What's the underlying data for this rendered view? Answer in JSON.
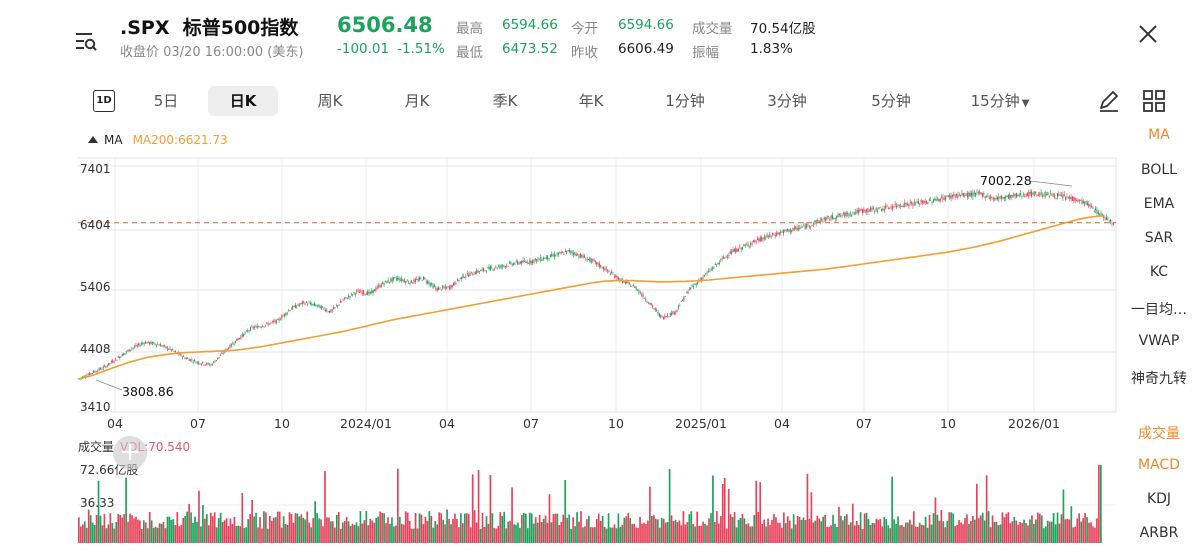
{
  "header": {
    "symbol": ".SPX",
    "name": "标普500指数",
    "status": "收盘价 03/20 16:00:00 (美东)",
    "price": "6506.48",
    "change": "-100.01",
    "change_pct": "-1.51%",
    "stats": [
      {
        "label": "最高",
        "value": "6594.66"
      },
      {
        "label": "今开",
        "value": "6594.66"
      },
      {
        "label": "成交量",
        "value": "70.54亿股"
      },
      {
        "label": "最低",
        "value": "6473.52"
      },
      {
        "label": "昨收",
        "value": "6606.49"
      },
      {
        "label": "振幅",
        "value": "1.83%"
      }
    ]
  },
  "periods": {
    "badge": "1D",
    "items": [
      "5日",
      "日K",
      "周K",
      "月K",
      "季K",
      "年K",
      "1分钟",
      "3分钟",
      "5分钟",
      "15分钟"
    ],
    "active": "日K"
  },
  "chart_header": {
    "ma_label": "MA",
    "ma200_label": "MA200:6621.73"
  },
  "indicators_main": [
    "MA",
    "BOLL",
    "EMA",
    "SAR",
    "KC",
    "一目均…",
    "VWAP",
    "神奇九转"
  ],
  "indicators_sub": [
    "成交量",
    "MACD",
    "KDJ",
    "ARBR"
  ],
  "volume": {
    "title": "成交量",
    "vol_label": "VOL:70.540",
    "y_top": "72.66亿股",
    "y_mid": "36.33"
  },
  "colors": {
    "up": "#e8405a",
    "down": "#1aa35a",
    "ma200": "#f0a030",
    "price_line": "#e07040"
  },
  "chart_data": {
    "type": "candlestick",
    "title": ".SPX 标普500指数",
    "y_ticks": [
      "7401",
      "6404",
      "5406",
      "4408",
      "3410"
    ],
    "ylim": [
      3410,
      7401
    ],
    "x_ticks": [
      "04",
      "07",
      "10",
      "2024/01",
      "04",
      "07",
      "10",
      "2025/01",
      "04",
      "07",
      "10",
      "2026/01"
    ],
    "annotations": {
      "high": "7002.28",
      "low": "3808.86"
    },
    "current_price_line": 6506.48,
    "ma200_last": 6621.73,
    "series": [
      {
        "name": "close",
        "values": [
          3950,
          4050,
          4150,
          4300,
          4450,
          4550,
          4520,
          4430,
          4300,
          4220,
          4180,
          4400,
          4600,
          4780,
          4830,
          4900,
          5100,
          5200,
          5150,
          5050,
          5250,
          5380,
          5350,
          5520,
          5600,
          5530,
          5600,
          5420,
          5450,
          5630,
          5700,
          5760,
          5800,
          5850,
          5870,
          5920,
          5980,
          6040,
          5950,
          5850,
          5700,
          5550,
          5450,
          5200,
          4950,
          5050,
          5400,
          5600,
          5800,
          6000,
          6100,
          6200,
          6280,
          6350,
          6400,
          6460,
          6550,
          6600,
          6650,
          6700,
          6720,
          6750,
          6800,
          6820,
          6850,
          6900,
          6950,
          6960,
          6980,
          6900,
          6930,
          6960,
          6980,
          6970,
          6940,
          6900,
          6820,
          6650,
          6506
        ]
      },
      {
        "name": "MA200",
        "values": [
          3950,
          4000,
          4080,
          4160,
          4230,
          4290,
          4330,
          4360,
          4380,
          4390,
          4400,
          4410,
          4420,
          4450,
          4480,
          4520,
          4560,
          4600,
          4640,
          4680,
          4720,
          4770,
          4820,
          4870,
          4920,
          4960,
          5000,
          5040,
          5080,
          5120,
          5160,
          5200,
          5240,
          5280,
          5320,
          5360,
          5400,
          5440,
          5480,
          5520,
          5550,
          5560,
          5560,
          5550,
          5540,
          5540,
          5545,
          5555,
          5570,
          5590,
          5610,
          5630,
          5650,
          5670,
          5690,
          5710,
          5730,
          5750,
          5780,
          5810,
          5840,
          5870,
          5900,
          5930,
          5960,
          5990,
          6020,
          6060,
          6100,
          6150,
          6200,
          6260,
          6320,
          6380,
          6440,
          6500,
          6560,
          6600,
          6622
        ]
      }
    ]
  }
}
